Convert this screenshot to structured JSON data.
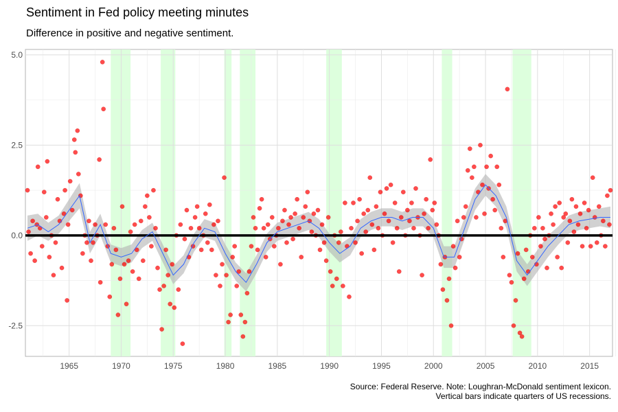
{
  "title": "Sentiment in Fed policy meeting minutes",
  "subtitle": "Difference in positive and negative sentiment.",
  "caption_line1": "Source: Federal Reserve. Note: Loughran-McDonald sentiment lexicon.",
  "caption_line2": "Vertical bars indicate quarters of US recessions.",
  "chart_data": {
    "type": "scatter",
    "x_unit": "year",
    "xlim": [
      1960.8,
      2017.2
    ],
    "ylim": [
      -3.35,
      5.15
    ],
    "x_ticks": [
      1965,
      1970,
      1975,
      1980,
      1985,
      1990,
      1995,
      2000,
      2005,
      2010,
      2015
    ],
    "x_tick_labels": [
      "1965",
      "1970",
      "1975",
      "1980",
      "1985",
      "1990",
      "1995",
      "2000",
      "2005",
      "2010",
      "2015"
    ],
    "y_ticks": [
      -2.5,
      0,
      2.5,
      5
    ],
    "y_tick_labels": [
      "-2.5",
      "0.0",
      "2.5",
      "5.0"
    ],
    "grid": true,
    "zero_line": 0,
    "recessions": [
      [
        1969.0,
        1970.9
      ],
      [
        1973.8,
        1975.2
      ],
      [
        1979.9,
        1980.6
      ],
      [
        1981.4,
        1982.9
      ],
      [
        1989.7,
        1991.2
      ],
      [
        2000.8,
        2001.8
      ],
      [
        2007.6,
        2009.4
      ]
    ],
    "colors": {
      "points": "#ff0000",
      "smooth": "#3366ff",
      "band": "#b3b3b3",
      "recession": "#d9ffd9",
      "zero": "#000000"
    },
    "smooth": {
      "x": [
        1961,
        1962,
        1963,
        1964,
        1965,
        1966,
        1967,
        1968,
        1969,
        1970,
        1971,
        1972,
        1973,
        1974,
        1975,
        1976,
        1977,
        1978,
        1979,
        1980,
        1981,
        1982,
        1983,
        1984,
        1985,
        1986,
        1987,
        1988,
        1989,
        1990,
        1991,
        1992,
        1993,
        1994,
        1995,
        1996,
        1997,
        1998,
        1999,
        2000,
        2001,
        2002,
        2003,
        2004,
        2005,
        2006,
        2007,
        2008,
        2009,
        2010,
        2011,
        2012,
        2013,
        2014,
        2015,
        2016,
        2017
      ],
      "y": [
        0.2,
        0.3,
        0.1,
        0.3,
        0.7,
        1.1,
        -0.2,
        0.3,
        -0.5,
        -0.6,
        -0.5,
        -0.1,
        0.1,
        -0.5,
        -1.1,
        -0.8,
        -0.2,
        0.2,
        0.1,
        -0.5,
        -1.0,
        -1.3,
        -0.8,
        -0.2,
        0.1,
        0.2,
        0.3,
        0.4,
        0.2,
        -0.2,
        -0.5,
        -0.3,
        0.2,
        0.4,
        0.5,
        0.5,
        0.4,
        0.5,
        0.5,
        0.2,
        -0.6,
        -0.6,
        0.2,
        1.0,
        1.4,
        1.1,
        0.5,
        -0.7,
        -1.1,
        -0.7,
        -0.3,
        0.0,
        0.3,
        0.4,
        0.45,
        0.5,
        0.5
      ],
      "band": [
        0.35,
        0.3,
        0.25,
        0.25,
        0.3,
        0.35,
        0.3,
        0.3,
        0.25,
        0.25,
        0.25,
        0.25,
        0.25,
        0.25,
        0.25,
        0.25,
        0.25,
        0.25,
        0.25,
        0.25,
        0.25,
        0.25,
        0.25,
        0.25,
        0.25,
        0.25,
        0.25,
        0.25,
        0.25,
        0.25,
        0.25,
        0.25,
        0.25,
        0.25,
        0.25,
        0.25,
        0.25,
        0.25,
        0.25,
        0.25,
        0.3,
        0.3,
        0.3,
        0.3,
        0.3,
        0.3,
        0.3,
        0.3,
        0.3,
        0.3,
        0.3,
        0.25,
        0.25,
        0.25,
        0.25,
        0.25,
        0.3
      ]
    },
    "points": [
      [
        1961.0,
        1.25
      ],
      [
        1961.1,
        0.1
      ],
      [
        1961.3,
        -0.5
      ],
      [
        1961.5,
        0.4
      ],
      [
        1961.7,
        -0.7
      ],
      [
        1961.9,
        0.3
      ],
      [
        1962.0,
        1.9
      ],
      [
        1962.2,
        0.2
      ],
      [
        1962.4,
        -0.3
      ],
      [
        1962.6,
        1.2
      ],
      [
        1962.8,
        0.5
      ],
      [
        1962.9,
        2.05
      ],
      [
        1963.1,
        -0.6
      ],
      [
        1963.3,
        0.0
      ],
      [
        1963.5,
        -1.1
      ],
      [
        1963.7,
        -0.2
      ],
      [
        1963.9,
        1.0
      ],
      [
        1964.1,
        0.4
      ],
      [
        1964.3,
        -0.9
      ],
      [
        1964.5,
        0.6
      ],
      [
        1964.6,
        1.25
      ],
      [
        1964.8,
        -1.8
      ],
      [
        1964.9,
        0.3
      ],
      [
        1965.1,
        1.5
      ],
      [
        1965.3,
        0.7
      ],
      [
        1965.5,
        2.65
      ],
      [
        1965.6,
        2.3
      ],
      [
        1965.8,
        2.9
      ],
      [
        1965.9,
        1.7
      ],
      [
        1966.1,
        1.1
      ],
      [
        1966.3,
        -0.5
      ],
      [
        1966.5,
        0.0
      ],
      [
        1966.7,
        -0.2
      ],
      [
        1966.9,
        0.4
      ],
      [
        1967.1,
        -0.7
      ],
      [
        1967.3,
        -0.2
      ],
      [
        1967.5,
        0.3
      ],
      [
        1967.7,
        0.0
      ],
      [
        1967.9,
        2.1
      ],
      [
        1968.0,
        -1.3
      ],
      [
        1968.2,
        4.8
      ],
      [
        1968.3,
        3.5
      ],
      [
        1968.5,
        0.3
      ],
      [
        1968.7,
        -0.3
      ],
      [
        1968.9,
        -1.7
      ],
      [
        1969.1,
        -0.8
      ],
      [
        1969.3,
        0.2
      ],
      [
        1969.5,
        -0.4
      ],
      [
        1969.7,
        -2.2
      ],
      [
        1969.9,
        -1.2
      ],
      [
        1970.1,
        0.8
      ],
      [
        1970.3,
        -0.8
      ],
      [
        1970.5,
        -1.9
      ],
      [
        1970.7,
        -0.7
      ],
      [
        1970.9,
        0.1
      ],
      [
        1971.1,
        -1.0
      ],
      [
        1971.3,
        0.3
      ],
      [
        1971.5,
        -0.4
      ],
      [
        1971.7,
        -1.2
      ],
      [
        1971.9,
        0.4
      ],
      [
        1972.1,
        -0.7
      ],
      [
        1972.3,
        0.8
      ],
      [
        1972.5,
        1.1
      ],
      [
        1972.7,
        0.5
      ],
      [
        1972.9,
        -0.3
      ],
      [
        1973.1,
        1.25
      ],
      [
        1973.3,
        0.2
      ],
      [
        1973.5,
        -0.9
      ],
      [
        1973.7,
        -1.5
      ],
      [
        1973.9,
        -2.6
      ],
      [
        1974.1,
        -1.4
      ],
      [
        1974.3,
        -0.4
      ],
      [
        1974.5,
        -1.1
      ],
      [
        1974.7,
        -1.9
      ],
      [
        1974.9,
        -0.8
      ],
      [
        1975.1,
        -2.0
      ],
      [
        1975.3,
        0.0
      ],
      [
        1975.5,
        -1.5
      ],
      [
        1975.7,
        0.3
      ],
      [
        1975.9,
        -3.0
      ],
      [
        1976.1,
        -0.1
      ],
      [
        1976.3,
        0.7
      ],
      [
        1976.5,
        -0.6
      ],
      [
        1976.7,
        0.2
      ],
      [
        1976.9,
        -0.3
      ],
      [
        1977.1,
        0.5
      ],
      [
        1977.3,
        0.8
      ],
      [
        1977.5,
        0.2
      ],
      [
        1977.7,
        -0.4
      ],
      [
        1977.9,
        0.0
      ],
      [
        1978.1,
        0.6
      ],
      [
        1978.3,
        -0.2
      ],
      [
        1978.5,
        0.85
      ],
      [
        1978.7,
        -0.4
      ],
      [
        1978.9,
        0.3
      ],
      [
        1979.1,
        -1.1
      ],
      [
        1979.3,
        0.4
      ],
      [
        1979.5,
        -1.4
      ],
      [
        1979.7,
        -0.8
      ],
      [
        1979.9,
        1.6
      ],
      [
        1980.1,
        -1.1
      ],
      [
        1980.3,
        -2.4
      ],
      [
        1980.5,
        -2.2
      ],
      [
        1980.7,
        -0.6
      ],
      [
        1980.9,
        -0.3
      ],
      [
        1981.1,
        -1.4
      ],
      [
        1981.3,
        -1.0
      ],
      [
        1981.5,
        -2.2
      ],
      [
        1981.7,
        -2.8
      ],
      [
        1981.9,
        -2.4
      ],
      [
        1982.1,
        -1.6
      ],
      [
        1982.3,
        -1.0
      ],
      [
        1982.5,
        -0.3
      ],
      [
        1982.7,
        0.5
      ],
      [
        1982.9,
        0.2
      ],
      [
        1983.1,
        -0.4
      ],
      [
        1983.3,
        0.75
      ],
      [
        1983.5,
        1.0
      ],
      [
        1983.7,
        0.2
      ],
      [
        1983.9,
        -0.6
      ],
      [
        1984.1,
        0.3
      ],
      [
        1984.3,
        -0.1
      ],
      [
        1984.5,
        0.5
      ],
      [
        1984.7,
        -0.3
      ],
      [
        1984.9,
        0.0
      ],
      [
        1985.1,
        0.2
      ],
      [
        1985.3,
        -0.8
      ],
      [
        1985.5,
        0.4
      ],
      [
        1985.7,
        0.7
      ],
      [
        1985.9,
        -0.2
      ],
      [
        1986.1,
        0.3
      ],
      [
        1986.3,
        0.5
      ],
      [
        1986.5,
        -0.1
      ],
      [
        1986.7,
        0.6
      ],
      [
        1986.9,
        1.0
      ],
      [
        1987.1,
        0.2
      ],
      [
        1987.3,
        -0.6
      ],
      [
        1987.5,
        0.5
      ],
      [
        1987.7,
        0.8
      ],
      [
        1987.9,
        1.2
      ],
      [
        1988.1,
        0.4
      ],
      [
        1988.3,
        0.1
      ],
      [
        1988.5,
        0.6
      ],
      [
        1988.7,
        0.0
      ],
      [
        1988.9,
        0.7
      ],
      [
        1989.1,
        -0.4
      ],
      [
        1989.3,
        0.3
      ],
      [
        1989.5,
        -0.2
      ],
      [
        1989.7,
        -0.7
      ],
      [
        1989.9,
        0.5
      ],
      [
        1990.1,
        -1.0
      ],
      [
        1990.3,
        -1.4
      ],
      [
        1990.5,
        0.0
      ],
      [
        1990.7,
        -1.2
      ],
      [
        1990.9,
        -0.2
      ],
      [
        1991.1,
        0.1
      ],
      [
        1991.3,
        -1.4
      ],
      [
        1991.5,
        0.9
      ],
      [
        1991.7,
        -0.3
      ],
      [
        1991.9,
        -1.7
      ],
      [
        1992.1,
        0.2
      ],
      [
        1992.3,
        0.9
      ],
      [
        1992.5,
        -0.2
      ],
      [
        1992.7,
        0.4
      ],
      [
        1992.9,
        1.0
      ],
      [
        1993.1,
        -0.5
      ],
      [
        1993.3,
        0.6
      ],
      [
        1993.5,
        0.1
      ],
      [
        1993.7,
        0.7
      ],
      [
        1993.9,
        1.6
      ],
      [
        1994.1,
        0.3
      ],
      [
        1994.3,
        -0.4
      ],
      [
        1994.5,
        0.8
      ],
      [
        1994.7,
        0.2
      ],
      [
        1994.9,
        1.2
      ],
      [
        1995.1,
        0.0
      ],
      [
        1995.3,
        0.6
      ],
      [
        1995.5,
        1.3
      ],
      [
        1995.7,
        0.4
      ],
      [
        1995.9,
        1.4
      ],
      [
        1996.1,
        -0.2
      ],
      [
        1996.3,
        0.9
      ],
      [
        1996.5,
        0.2
      ],
      [
        1996.7,
        -1.0
      ],
      [
        1996.9,
        0.5
      ],
      [
        1997.1,
        1.2
      ],
      [
        1997.3,
        0.0
      ],
      [
        1997.5,
        0.7
      ],
      [
        1997.7,
        0.4
      ],
      [
        1997.9,
        0.9
      ],
      [
        1998.1,
        0.2
      ],
      [
        1998.3,
        1.3
      ],
      [
        1998.5,
        0.5
      ],
      [
        1998.7,
        0.0
      ],
      [
        1998.9,
        -1.1
      ],
      [
        1999.1,
        0.6
      ],
      [
        1999.3,
        1.0
      ],
      [
        1999.5,
        0.2
      ],
      [
        1999.7,
        2.1
      ],
      [
        1999.9,
        0.7
      ],
      [
        2000.1,
        0.9
      ],
      [
        2000.3,
        0.3
      ],
      [
        2000.5,
        0.0
      ],
      [
        2000.7,
        -0.8
      ],
      [
        2000.9,
        -1.5
      ],
      [
        2001.1,
        -0.6
      ],
      [
        2001.3,
        -1.8
      ],
      [
        2001.5,
        -1.2
      ],
      [
        2001.7,
        -2.5
      ],
      [
        2001.9,
        -0.3
      ],
      [
        2002.1,
        -0.9
      ],
      [
        2002.3,
        0.4
      ],
      [
        2002.5,
        -0.6
      ],
      [
        2002.7,
        -0.1
      ],
      [
        2002.9,
        0.5
      ],
      [
        2003.1,
        0.8
      ],
      [
        2003.3,
        1.8
      ],
      [
        2003.5,
        2.4
      ],
      [
        2003.7,
        1.6
      ],
      [
        2003.9,
        1.9
      ],
      [
        2004.1,
        0.5
      ],
      [
        2004.3,
        1.2
      ],
      [
        2004.5,
        2.5
      ],
      [
        2004.7,
        1.4
      ],
      [
        2004.9,
        0.6
      ],
      [
        2005.1,
        1.9
      ],
      [
        2005.3,
        1.3
      ],
      [
        2005.5,
        2.2
      ],
      [
        2005.7,
        1.0
      ],
      [
        2005.9,
        0.7
      ],
      [
        2006.1,
        1.9
      ],
      [
        2006.3,
        1.4
      ],
      [
        2006.5,
        0.2
      ],
      [
        2006.7,
        -0.6
      ],
      [
        2006.9,
        0.4
      ],
      [
        2007.1,
        4.05
      ],
      [
        2007.3,
        -1.1
      ],
      [
        2007.5,
        -1.3
      ],
      [
        2007.7,
        -2.5
      ],
      [
        2007.9,
        -1.8
      ],
      [
        2008.1,
        -0.5
      ],
      [
        2008.3,
        -2.7
      ],
      [
        2008.5,
        -2.8
      ],
      [
        2008.7,
        -1.2
      ],
      [
        2008.9,
        -0.4
      ],
      [
        2009.1,
        -1.0
      ],
      [
        2009.3,
        0.0
      ],
      [
        2009.5,
        -0.6
      ],
      [
        2009.7,
        0.2
      ],
      [
        2009.9,
        -0.8
      ],
      [
        2010.1,
        0.5
      ],
      [
        2010.3,
        -0.3
      ],
      [
        2010.5,
        0.2
      ],
      [
        2010.7,
        -0.1
      ],
      [
        2010.9,
        -0.9
      ],
      [
        2011.1,
        0.0
      ],
      [
        2011.3,
        0.6
      ],
      [
        2011.5,
        0.3
      ],
      [
        2011.7,
        0.8
      ],
      [
        2011.9,
        -0.6
      ],
      [
        2012.1,
        0.9
      ],
      [
        2012.3,
        -0.9
      ],
      [
        2012.5,
        0.5
      ],
      [
        2012.7,
        0.6
      ],
      [
        2012.9,
        -0.2
      ],
      [
        2013.1,
        0.4
      ],
      [
        2013.3,
        1.0
      ],
      [
        2013.5,
        0.1
      ],
      [
        2013.7,
        0.8
      ],
      [
        2013.9,
        0.3
      ],
      [
        2014.1,
        0.6
      ],
      [
        2014.3,
        -0.3
      ],
      [
        2014.5,
        0.9
      ],
      [
        2014.7,
        0.2
      ],
      [
        2014.9,
        0.7
      ],
      [
        2015.1,
        -0.3
      ],
      [
        2015.3,
        1.6
      ],
      [
        2015.5,
        0.5
      ],
      [
        2015.7,
        -0.2
      ],
      [
        2015.9,
        0.8
      ],
      [
        2016.1,
        0.0
      ],
      [
        2016.3,
        0.4
      ],
      [
        2016.5,
        -0.3
      ],
      [
        2016.7,
        1.1
      ],
      [
        2016.9,
        0.3
      ],
      [
        2017.0,
        1.25
      ]
    ]
  }
}
